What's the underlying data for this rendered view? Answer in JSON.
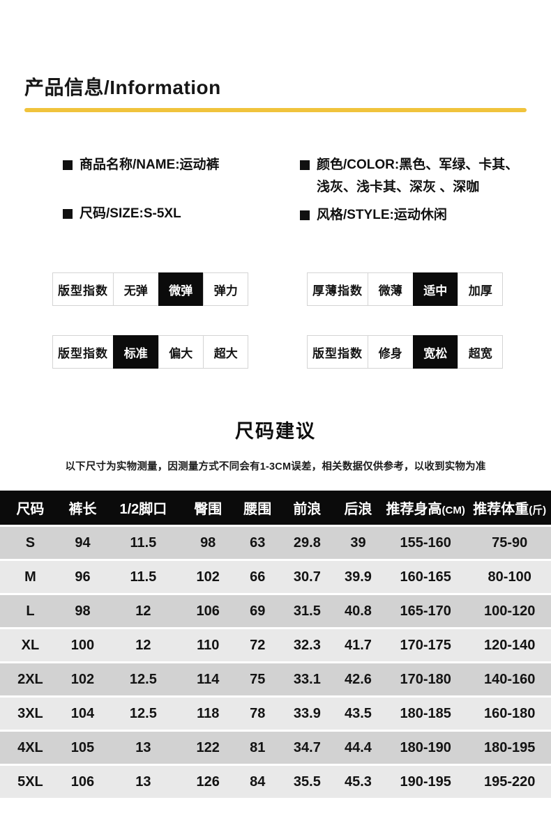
{
  "colors": {
    "accent_yellow": "#F0C33C",
    "table_header_black": "#0B0B0B",
    "row_dark": "#D2D2D2",
    "row_light": "#E9E9E9"
  },
  "section_product": {
    "title": "产品信息/Information",
    "bullets": {
      "name": "商品名称/NAME:运动裤",
      "color_line1": "颜色/COLOR:黑色、军绿、卡其、",
      "color_line2": "浅灰、浅卡其、深灰 、深咖",
      "size": "尺码/SIZE:S-5XL",
      "style": "风格/STYLE:运动休闲"
    }
  },
  "index_tables": [
    {
      "label": "版型指数",
      "options": [
        "无弹",
        "微弹",
        "弹力"
      ],
      "selected": 1
    },
    {
      "label": "厚薄指数",
      "options": [
        "微薄",
        "适中",
        "加厚"
      ],
      "selected": 1
    },
    {
      "label": "版型指数",
      "options": [
        "标准",
        "偏大",
        "超大"
      ],
      "selected": 0
    },
    {
      "label": "版型指数",
      "options": [
        "修身",
        "宽松",
        "超宽"
      ],
      "selected": 1
    }
  ],
  "size_section": {
    "title": "尺码建议",
    "note": "以下尺寸为实物测量，因测量方式不同会有1-3CM误差，相关数据仅供参考，以收到实物为准",
    "columns": [
      "尺码",
      "裤长",
      "1/2脚口",
      "臀围",
      "腰围",
      "前浪",
      "后浪",
      "推荐身高(CM)",
      "推荐体重(斤)"
    ],
    "rows": [
      [
        "S",
        "94",
        "11.5",
        "98",
        "63",
        "29.8",
        "39",
        "155-160",
        "75-90"
      ],
      [
        "M",
        "96",
        "11.5",
        "102",
        "66",
        "30.7",
        "39.9",
        "160-165",
        "80-100"
      ],
      [
        "L",
        "98",
        "12",
        "106",
        "69",
        "31.5",
        "40.8",
        "165-170",
        "100-120"
      ],
      [
        "XL",
        "100",
        "12",
        "110",
        "72",
        "32.3",
        "41.7",
        "170-175",
        "120-140"
      ],
      [
        "2XL",
        "102",
        "12.5",
        "114",
        "75",
        "33.1",
        "42.6",
        "170-180",
        "140-160"
      ],
      [
        "3XL",
        "104",
        "12.5",
        "118",
        "78",
        "33.9",
        "43.5",
        "180-185",
        "160-180"
      ],
      [
        "4XL",
        "105",
        "13",
        "122",
        "81",
        "34.7",
        "44.4",
        "180-190",
        "180-195"
      ],
      [
        "5XL",
        "106",
        "13",
        "126",
        "84",
        "35.5",
        "45.3",
        "190-195",
        "195-220"
      ]
    ]
  }
}
